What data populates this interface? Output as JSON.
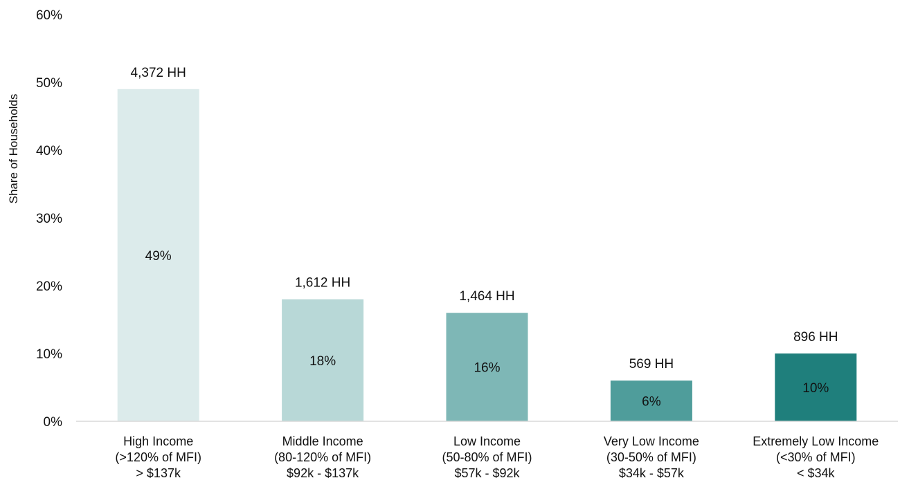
{
  "chart_data": {
    "type": "bar",
    "title": "",
    "xlabel": "",
    "ylabel": "Share of Households",
    "ylim": [
      0,
      60
    ],
    "yticks": [
      "0%",
      "10%",
      "20%",
      "30%",
      "40%",
      "50%",
      "60%"
    ],
    "grid": false,
    "legend": "none",
    "categories": [
      [
        "High Income",
        "(>120% of MFI)",
        "> $137k"
      ],
      [
        "Middle Income",
        "(80-120% of MFI)",
        "$92k - $137k"
      ],
      [
        "Low Income",
        "(50-80% of MFI)",
        "$57k - $92k"
      ],
      [
        "Very Low Income",
        "(30-50% of MFI)",
        "$34k - $57k"
      ],
      [
        "Extremely Low Income",
        "(<30% of MFI)",
        "< $34k"
      ]
    ],
    "values": [
      49,
      18,
      16,
      6,
      10
    ],
    "value_labels": [
      "49%",
      "18%",
      "16%",
      "6%",
      "10%"
    ],
    "household_labels": [
      "4,372 HH",
      "1,612 HH",
      "1,464 HH",
      "569 HH",
      "896 HH"
    ],
    "bar_colors": [
      "#dcebeb",
      "#b8d8d7",
      "#7eb7b6",
      "#4f9d9b",
      "#1f7f7c"
    ],
    "axis_color": "#d9d9d9"
  }
}
